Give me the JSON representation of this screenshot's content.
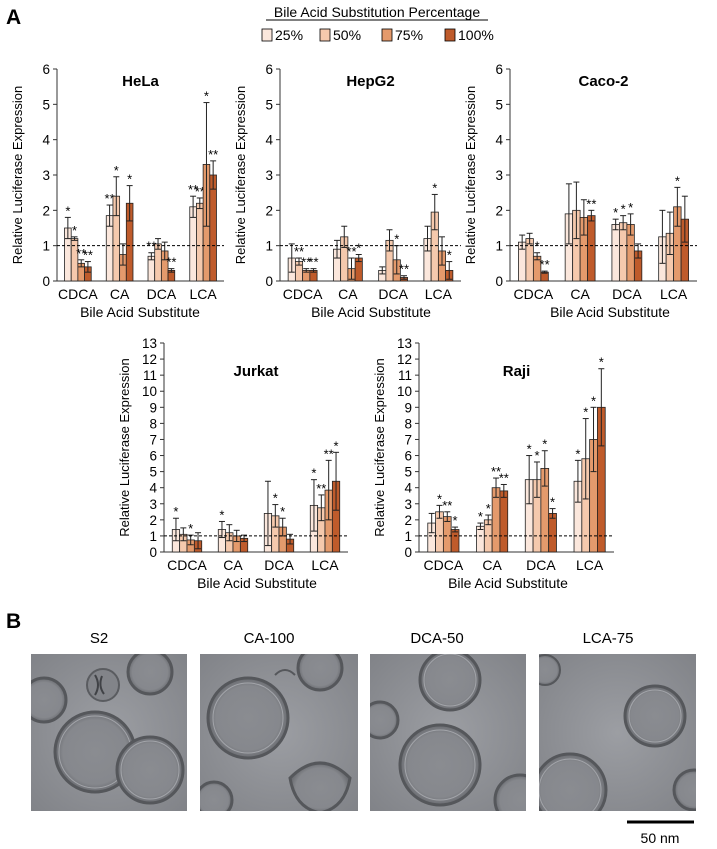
{
  "figure": {
    "panel_a_label": "A",
    "panel_b_label": "B",
    "legend_title": "Bile Acid Substitution Percentage",
    "legend": [
      {
        "label": "25%",
        "color": "#FBE7DC"
      },
      {
        "label": "50%",
        "color": "#F5C9AD"
      },
      {
        "label": "75%",
        "color": "#E49A6C"
      },
      {
        "label": "100%",
        "color": "#BF5B2B"
      }
    ],
    "ylabel": "Relative Luciferase Expression",
    "xlabel": "Bile Acid Substitute",
    "scale_bar_label": "50 nm"
  },
  "micrographs": [
    {
      "label": "S2"
    },
    {
      "label": "CA-100"
    },
    {
      "label": "DCA-50"
    },
    {
      "label": "LCA-75"
    }
  ],
  "chart_data": [
    {
      "type": "bar",
      "title": "HeLa",
      "categories": [
        "CDCA",
        "CA",
        "DCA",
        "LCA"
      ],
      "ylim": [
        0,
        6
      ],
      "yticks": [
        0,
        1,
        2,
        3,
        4,
        5,
        6
      ],
      "reference_line": 1,
      "series": [
        {
          "name": "25%",
          "values": [
            1.5,
            1.85,
            0.7,
            2.1
          ],
          "errors": [
            0.3,
            0.3,
            0.1,
            0.3
          ],
          "sig": [
            "*",
            "**",
            "**",
            "**"
          ]
        },
        {
          "name": "50%",
          "values": [
            1.2,
            2.4,
            1.05,
            2.2
          ],
          "errors": [
            0.05,
            0.55,
            0.15,
            0.15
          ],
          "sig": [
            "*",
            "*",
            "",
            "**"
          ]
        },
        {
          "name": "75%",
          "values": [
            0.5,
            0.75,
            0.85,
            3.3
          ],
          "errors": [
            0.1,
            0.3,
            0.25,
            1.75
          ],
          "sig": [
            "**",
            "",
            "",
            "*"
          ]
        },
        {
          "name": "100%",
          "values": [
            0.4,
            2.2,
            0.3,
            3.0
          ],
          "errors": [
            0.15,
            0.5,
            0.05,
            0.4
          ],
          "sig": [
            "**",
            "*",
            "**",
            "**"
          ]
        }
      ]
    },
    {
      "type": "bar",
      "title": "HepG2",
      "categories": [
        "CDCA",
        "CA",
        "DCA",
        "LCA"
      ],
      "ylim": [
        0,
        6
      ],
      "yticks": [
        0,
        1,
        2,
        3,
        4,
        5,
        6
      ],
      "reference_line": 1,
      "series": [
        {
          "name": "25%",
          "values": [
            0.65,
            0.9,
            0.3,
            1.2
          ],
          "errors": [
            0.4,
            0.25,
            0.1,
            0.35
          ],
          "sig": [
            "",
            "",
            "",
            ""
          ]
        },
        {
          "name": "50%",
          "values": [
            0.55,
            1.25,
            1.15,
            1.95
          ],
          "errors": [
            0.1,
            0.3,
            0.3,
            0.5
          ],
          "sig": [
            "**",
            "",
            "",
            "*"
          ]
        },
        {
          "name": "75%",
          "values": [
            0.3,
            0.35,
            0.6,
            0.85
          ],
          "errors": [
            0.05,
            0.3,
            0.4,
            0.4
          ],
          "sig": [
            "**",
            "**",
            "*",
            ""
          ]
        },
        {
          "name": "100%",
          "values": [
            0.3,
            0.65,
            0.1,
            0.3
          ],
          "errors": [
            0.05,
            0.1,
            0.05,
            0.25
          ],
          "sig": [
            "**",
            "*",
            "**",
            "*"
          ]
        }
      ]
    },
    {
      "type": "bar",
      "title": "Caco-2",
      "categories": [
        "CDCA",
        "CA",
        "DCA",
        "LCA"
      ],
      "ylim": [
        0,
        6
      ],
      "yticks": [
        0,
        1,
        2,
        3,
        4,
        5,
        6
      ],
      "reference_line": 1,
      "series": [
        {
          "name": "25%",
          "values": [
            1.1,
            1.9,
            1.6,
            1.25
          ],
          "errors": [
            0.2,
            0.85,
            0.15,
            0.75
          ],
          "sig": [
            "",
            "",
            "*",
            ""
          ]
        },
        {
          "name": "50%",
          "values": [
            1.2,
            2.0,
            1.65,
            1.35
          ],
          "errors": [
            0.15,
            0.8,
            0.2,
            0.6
          ],
          "sig": [
            "",
            "",
            "*",
            ""
          ]
        },
        {
          "name": "75%",
          "values": [
            0.7,
            1.8,
            1.6,
            2.1
          ],
          "errors": [
            0.1,
            0.5,
            0.3,
            0.55
          ],
          "sig": [
            "*",
            "",
            "*",
            "*"
          ]
        },
        {
          "name": "100%",
          "values": [
            0.25,
            1.85,
            0.85,
            1.75
          ],
          "errors": [
            0.03,
            0.15,
            0.2,
            0.65
          ],
          "sig": [
            "**",
            "**",
            "",
            ""
          ]
        }
      ]
    },
    {
      "type": "bar",
      "title": "Jurkat",
      "categories": [
        "CDCA",
        "CA",
        "DCA",
        "LCA"
      ],
      "ylim": [
        0,
        13
      ],
      "yticks": [
        0,
        1,
        2,
        3,
        4,
        5,
        6,
        7,
        8,
        9,
        10,
        11,
        12,
        13
      ],
      "reference_line": 1,
      "series": [
        {
          "name": "25%",
          "values": [
            1.4,
            1.4,
            2.4,
            2.9
          ],
          "errors": [
            0.7,
            0.5,
            2.0,
            1.6
          ],
          "sig": [
            "*",
            "*",
            "",
            "*"
          ]
        },
        {
          "name": "50%",
          "values": [
            1.1,
            1.2,
            2.25,
            2.75
          ],
          "errors": [
            0.4,
            0.5,
            0.7,
            0.8
          ],
          "sig": [
            "",
            "",
            "*",
            "**"
          ]
        },
        {
          "name": "75%",
          "values": [
            0.75,
            1.0,
            1.55,
            3.85
          ],
          "errors": [
            0.3,
            0.35,
            0.55,
            1.85
          ],
          "sig": [
            "*",
            "",
            "*",
            "**"
          ]
        },
        {
          "name": "100%",
          "values": [
            0.7,
            0.85,
            0.8,
            4.4
          ],
          "errors": [
            0.5,
            0.2,
            0.3,
            1.8
          ],
          "sig": [
            "",
            "",
            "",
            "*"
          ]
        }
      ]
    },
    {
      "type": "bar",
      "title": "Raji",
      "categories": [
        "CDCA",
        "CA",
        "DCA",
        "LCA"
      ],
      "ylim": [
        0,
        13
      ],
      "yticks": [
        0,
        1,
        2,
        3,
        4,
        5,
        6,
        7,
        8,
        9,
        10,
        11,
        12,
        13
      ],
      "reference_line": 1,
      "series": [
        {
          "name": "25%",
          "values": [
            1.8,
            1.6,
            4.5,
            4.4
          ],
          "errors": [
            0.6,
            0.2,
            1.5,
            1.3
          ],
          "sig": [
            "",
            "*",
            "*",
            "*"
          ]
        },
        {
          "name": "50%",
          "values": [
            2.5,
            2.0,
            4.5,
            5.8
          ],
          "errors": [
            0.4,
            0.3,
            1.1,
            2.5
          ],
          "sig": [
            "*",
            "*",
            "*",
            "*"
          ]
        },
        {
          "name": "75%",
          "values": [
            2.2,
            4.0,
            5.2,
            7.0
          ],
          "errors": [
            0.3,
            0.6,
            1.1,
            2.0
          ],
          "sig": [
            "**",
            "**",
            "*",
            "*"
          ]
        },
        {
          "name": "100%",
          "values": [
            1.4,
            3.8,
            2.4,
            9.0
          ],
          "errors": [
            0.15,
            0.4,
            0.3,
            2.4
          ],
          "sig": [
            "*",
            "**",
            "*",
            "*"
          ]
        }
      ]
    }
  ]
}
